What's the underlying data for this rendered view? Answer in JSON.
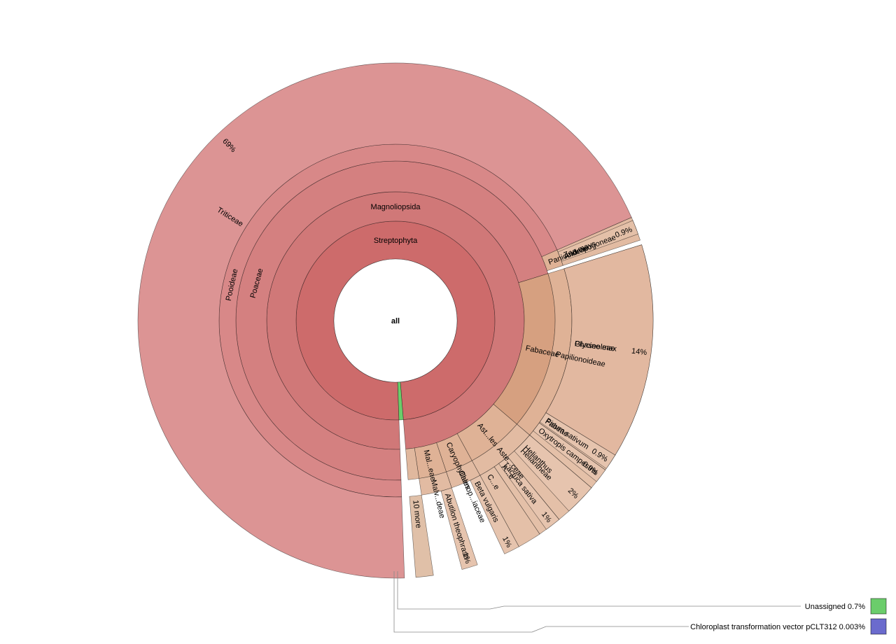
{
  "chart_data": {
    "type": "sunburst",
    "center_label": "all",
    "nodes": [
      {
        "ring": 1,
        "label": "Streptophyta",
        "start": 0.0,
        "end": 99.297,
        "color": "#cd6b6b"
      },
      {
        "ring": 1,
        "label": "",
        "start": 99.297,
        "end": 100.0,
        "color": "#6bcd6b"
      },
      {
        "ring": 2,
        "label": "Magnoliopsida",
        "start": 0.0,
        "end": 99.297,
        "color": "#d07878"
      },
      {
        "ring": 3,
        "label": "Poaceae",
        "start": 0.0,
        "end": 70.8,
        "color": "#d48080"
      },
      {
        "ring": 3,
        "label": "Fabaceae",
        "start": 70.8,
        "end": 86.8,
        "color": "#d6a080"
      },
      {
        "ring": 3,
        "label": "Ast...les",
        "start": 86.8,
        "end": 92.6,
        "color": "#dfb296"
      },
      {
        "ring": 3,
        "label": "Caryophyllales",
        "start": 92.6,
        "end": 95.4,
        "color": "#dfb296"
      },
      {
        "ring": 3,
        "label": "Mal...eae",
        "start": 95.4,
        "end": 98.2,
        "color": "#dfb296"
      },
      {
        "ring": 3,
        "label": "",
        "start": 98.2,
        "end": 99.297,
        "color": "#e0b89e"
      },
      {
        "ring": 4,
        "label": "Pooideae",
        "start": 0.0,
        "end": 69.0,
        "color": "#d88888"
      },
      {
        "ring": 4,
        "label": "Panicoideae",
        "start": 69.0,
        "end": 70.5,
        "color": "#dfb296"
      },
      {
        "ring": 4,
        "label": "Papilionoideae",
        "start": 70.8,
        "end": 86.8,
        "color": "#dfb296"
      },
      {
        "ring": 4,
        "label": "Aste...ceae",
        "start": 86.8,
        "end": 92.6,
        "color": "#e2bba2"
      },
      {
        "ring": 4,
        "label": "Chenop...iaceae",
        "start": 92.6,
        "end": 95.4,
        "color": "#e2bba2"
      },
      {
        "ring": 4,
        "label": "Malv...deae",
        "start": 95.4,
        "end": 98.2,
        "color": "#e2bba2"
      },
      {
        "ring": 5,
        "label": "Triticeae",
        "start": 0.0,
        "end": 69.0,
        "color": "#dc9494"
      },
      {
        "ring": 5,
        "label": "Andropogoneae",
        "start": 69.0,
        "end": 70.5,
        "color": "#e2bba2"
      },
      {
        "ring": 5,
        "label": "Phaseoleae",
        "start": 70.8,
        "end": 84.3,
        "color": "#e2bba2"
      },
      {
        "ring": 5,
        "label": "Fabeae",
        "start": 84.3,
        "end": 85.4,
        "color": "#e4c0a8"
      },
      {
        "ring": 5,
        "label": "",
        "start": 85.4,
        "end": 86.8,
        "color": "#e4c0a8"
      },
      {
        "ring": 5,
        "label": "Heliantheae",
        "start": 86.8,
        "end": 89.6,
        "color": "#e4c0a8"
      },
      {
        "ring": 5,
        "label": "A...e",
        "start": 89.6,
        "end": 91.1,
        "color": "#e4c0a8"
      },
      {
        "ring": 5,
        "label": "C...e",
        "start": 91.1,
        "end": 92.6,
        "color": "#e4c0a8"
      },
      {
        "ring": 6,
        "label": "Zea mays",
        "start": 69.2,
        "end": 70.1,
        "color": "#e4c0a8"
      },
      {
        "ring": 6,
        "label": "Glycine max",
        "start": 70.8,
        "end": 84.3,
        "color": "#e2b8a0"
      },
      {
        "ring": 6,
        "label": "Pisum sativum",
        "start": 84.3,
        "end": 85.3,
        "color": "#e6c4ae"
      },
      {
        "ring": 6,
        "label": "Oxytropis campestris",
        "start": 85.4,
        "end": 86.3,
        "color": "#e6c4ae"
      },
      {
        "ring": 6,
        "label": "Helianthus",
        "start": 86.8,
        "end": 88.8,
        "color": "#e6c4ae"
      },
      {
        "ring": 6,
        "label": "Lactuca sativa",
        "start": 89.6,
        "end": 90.6,
        "color": "#e6c4ae"
      },
      {
        "ring": 6,
        "label": "Beta vulgaris",
        "start": 92.6,
        "end": 93.6,
        "color": "#e6c4ae"
      },
      {
        "ring": 6,
        "label": "Abutilon theophrasti",
        "start": 95.4,
        "end": 96.4,
        "color": "#e6c4ae"
      },
      {
        "ring": 6,
        "label": "10 more",
        "start": 98.2,
        "end": 99.297,
        "color": "#e0c0a8"
      }
    ],
    "percent_labels": [
      {
        "label": "Triticeae",
        "percent": "69%"
      },
      {
        "label": "Zea mays",
        "percent": "0.9%"
      },
      {
        "label": "Glycine max",
        "percent": "14%"
      },
      {
        "label": "Pisum sativum",
        "percent": "0.9%"
      },
      {
        "label": "Oxytropis campestris",
        "percent": "0.9%"
      },
      {
        "label": "Helianthus",
        "percent": "2%"
      },
      {
        "label": "Lactuca sativa",
        "percent": "1%"
      },
      {
        "label": "Beta vulgaris",
        "percent": "1%"
      },
      {
        "label": "Abutilon theophrasti",
        "percent": "1%"
      }
    ],
    "legend": [
      {
        "label": "Unassigned",
        "percent": "0.7%",
        "color": "#6bcd6b"
      },
      {
        "label": "Chloroplast transformation vector pCLT312",
        "percent": "0.003%",
        "color": "#6b6bcd"
      }
    ]
  }
}
